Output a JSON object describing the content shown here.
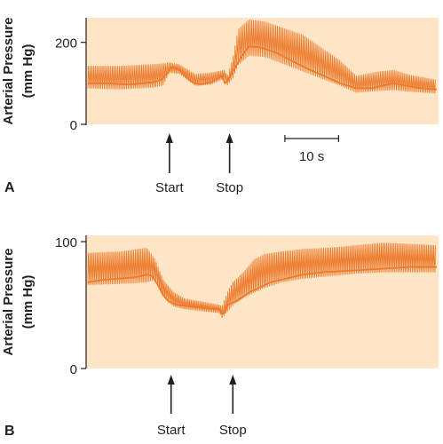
{
  "colors": {
    "background": "#fde5c5",
    "trace": "#ec7a2c",
    "ink": "#231f20"
  },
  "chart_data": [
    {
      "panel": "A",
      "type": "line",
      "ylabel": [
        "Arterial Pressure",
        "(mm Hg)"
      ],
      "yticks": [
        0,
        200
      ],
      "ylim": [
        0,
        260
      ],
      "xlim": [
        0,
        65
      ],
      "grid": false,
      "scale_bar": {
        "label": "10 s",
        "seconds": 10,
        "x_start": 36.7
      },
      "events": [
        {
          "label": "Start",
          "t": 15.2
        },
        {
          "label": "Stop",
          "t": 26.4
        }
      ],
      "mean": {
        "t": [
          0,
          2,
          4,
          6,
          8,
          10,
          12,
          13,
          14,
          15,
          15.5,
          16,
          17,
          18,
          19,
          20,
          21,
          22,
          23,
          24,
          25,
          25.5,
          26,
          27,
          28,
          29,
          30,
          32,
          35,
          38,
          41,
          44,
          47,
          50,
          53,
          55,
          57,
          59,
          62,
          65
        ],
        "p": [
          100,
          100,
          100,
          98,
          97,
          100,
          102,
          106,
          112,
          128,
          138,
          140,
          132,
          120,
          108,
          100,
          98,
          100,
          103,
          110,
          118,
          100,
          106,
          128,
          152,
          172,
          190,
          188,
          175,
          155,
          135,
          118,
          100,
          88,
          88,
          95,
          100,
          95,
          88,
          85
        ]
      },
      "pulse": {
        "t": [
          0,
          6,
          12,
          14,
          15.2,
          17,
          20,
          23,
          25.4,
          26,
          27,
          28,
          30,
          33,
          40,
          47,
          50,
          54,
          57,
          60,
          65
        ],
        "systolic": [
          142,
          142,
          146,
          148,
          150,
          146,
          122,
          126,
          132,
          118,
          162,
          232,
          255,
          250,
          218,
          155,
          118,
          128,
          132,
          120,
          108
        ],
        "diastolic": [
          88,
          86,
          90,
          95,
          126,
          124,
          94,
          98,
          112,
          96,
          112,
          145,
          168,
          165,
          130,
          95,
          78,
          82,
          84,
          80,
          76
        ]
      }
    },
    {
      "panel": "B",
      "type": "line",
      "ylabel": [
        "Arterial Pressure",
        "(mm Hg)"
      ],
      "yticks": [
        0,
        100
      ],
      "ylim": [
        0,
        105
      ],
      "xlim": [
        0,
        65
      ],
      "grid": false,
      "events": [
        {
          "label": "Start",
          "t": 15.5
        },
        {
          "label": "Stop",
          "t": 27
        }
      ],
      "mean": {
        "t": [
          0,
          3,
          6,
          9,
          11,
          12,
          13,
          14,
          15,
          16,
          17,
          19,
          21,
          23,
          24.5,
          25,
          25.5,
          26,
          27,
          28,
          29,
          30,
          32,
          34,
          37,
          40,
          44,
          48,
          52,
          56,
          60,
          65
        ],
        "p": [
          68,
          70,
          71,
          72,
          74,
          73,
          66,
          58,
          53,
          51,
          50,
          49,
          48,
          47,
          47,
          43,
          44,
          50,
          52,
          54,
          57,
          60,
          64,
          68,
          71,
          74,
          76,
          77,
          78,
          79,
          80,
          80
        ]
      },
      "pulse": {
        "t": [
          0,
          6,
          11,
          12.5,
          14,
          16,
          18,
          22,
          24.5,
          25,
          26,
          27,
          29,
          31,
          33,
          36,
          40,
          45,
          50,
          55,
          60,
          65
        ],
        "systolic": [
          91,
          92,
          95,
          86,
          70,
          60,
          55,
          52,
          50,
          49,
          60,
          68,
          76,
          86,
          90,
          92,
          94,
          95,
          97,
          99,
          98,
          97
        ],
        "diastolic": [
          66,
          67,
          68,
          70,
          57,
          49,
          47,
          45,
          44,
          40,
          45,
          50,
          56,
          60,
          64,
          68,
          71,
          73,
          75,
          76,
          76,
          76
        ]
      }
    }
  ]
}
